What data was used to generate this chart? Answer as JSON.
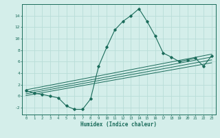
{
  "title": "",
  "xlabel": "Humidex (Indice chaleur)",
  "bg_color": "#d4eeea",
  "grid_color": "#b8ddd8",
  "line_color": "#1a6b5a",
  "xlim": [
    -0.5,
    23.5
  ],
  "ylim": [
    -3.2,
    16.0
  ],
  "xticks": [
    0,
    1,
    2,
    3,
    4,
    5,
    6,
    7,
    8,
    9,
    10,
    11,
    12,
    13,
    14,
    15,
    16,
    17,
    18,
    19,
    20,
    21,
    22,
    23
  ],
  "yticks": [
    -2,
    0,
    2,
    4,
    6,
    8,
    10,
    12,
    14
  ],
  "main_x": [
    0,
    1,
    2,
    3,
    4,
    5,
    6,
    7,
    8,
    9,
    10,
    11,
    12,
    13,
    14,
    15,
    16,
    17,
    18,
    19,
    20,
    21,
    22,
    23
  ],
  "main_y": [
    1.0,
    0.5,
    0.3,
    0.0,
    -0.3,
    -1.7,
    -2.3,
    -2.3,
    -0.5,
    5.2,
    8.5,
    11.5,
    13.0,
    14.0,
    15.2,
    13.0,
    10.5,
    7.5,
    6.8,
    6.0,
    6.3,
    6.6,
    5.2,
    7.0
  ],
  "line1_x": [
    0,
    23
  ],
  "line1_y": [
    1.1,
    7.3
  ],
  "line2_x": [
    0,
    23
  ],
  "line2_y": [
    0.7,
    6.8
  ],
  "line3_x": [
    0,
    23
  ],
  "line3_y": [
    0.4,
    6.3
  ],
  "line4_x": [
    0,
    23
  ],
  "line4_y": [
    0.1,
    5.8
  ]
}
